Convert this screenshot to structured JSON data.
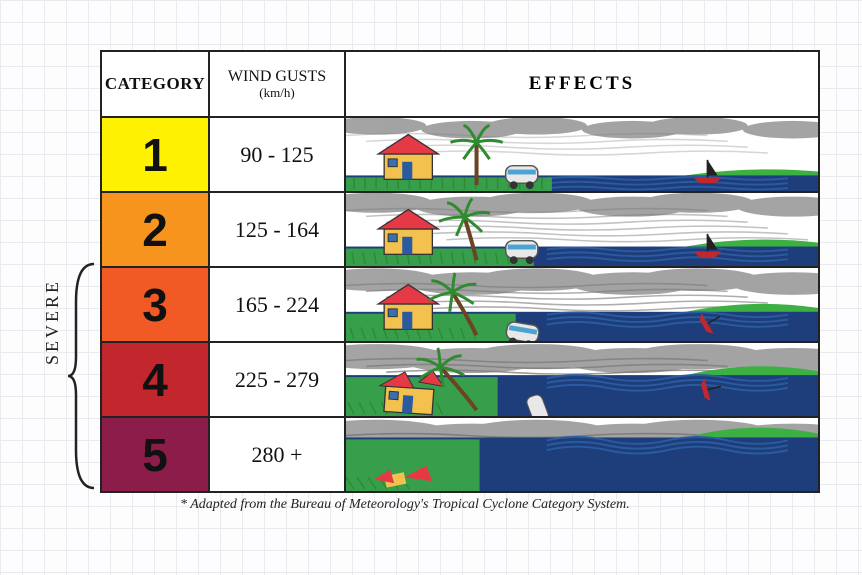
{
  "headers": {
    "category": "CATEGORY",
    "wind": "WIND GUSTS",
    "wind_unit": "(km/h)",
    "effects": "EFFECTS"
  },
  "rows": [
    {
      "num": "1",
      "wind": "90 - 125",
      "color": "#fff200",
      "severe": false,
      "water": 16,
      "damage": 0
    },
    {
      "num": "2",
      "wind": "125 - 164",
      "color": "#f7941d",
      "severe": false,
      "water": 20,
      "damage": 1
    },
    {
      "num": "3",
      "wind": "165 - 224",
      "color": "#f15a24",
      "severe": true,
      "water": 30,
      "damage": 2
    },
    {
      "num": "4",
      "wind": "225 - 279",
      "color": "#c1272d",
      "severe": true,
      "water": 42,
      "damage": 3
    },
    {
      "num": "5",
      "wind": "280 +",
      "color": "#8c1d4b",
      "severe": true,
      "water": 55,
      "damage": 4
    }
  ],
  "scene_palette": {
    "sky": "#ffffff",
    "cloud": "#9a9a9a",
    "cloud_dark": "#7a7a7a",
    "water": "#1d3e7a",
    "wave": "#2a5aa0",
    "grass": "#3cb043",
    "grass_dark": "#2e8b30",
    "house_wall": "#f2c14e",
    "house_roof": "#e63946",
    "door": "#2a5aa0",
    "window": "#3a6fb0",
    "palm_trunk": "#6b4423",
    "palm_leaf": "#2e8b30",
    "caravan": "#e8e8e8",
    "caravan_stripe": "#4aa3d0",
    "boat_hull": "#c1272d",
    "boat_sail": "#222"
  },
  "footnote": "* Adapted from the Bureau of Meteorology's Tropical Cyclone Category System.",
  "severe_label": "SEVERE"
}
